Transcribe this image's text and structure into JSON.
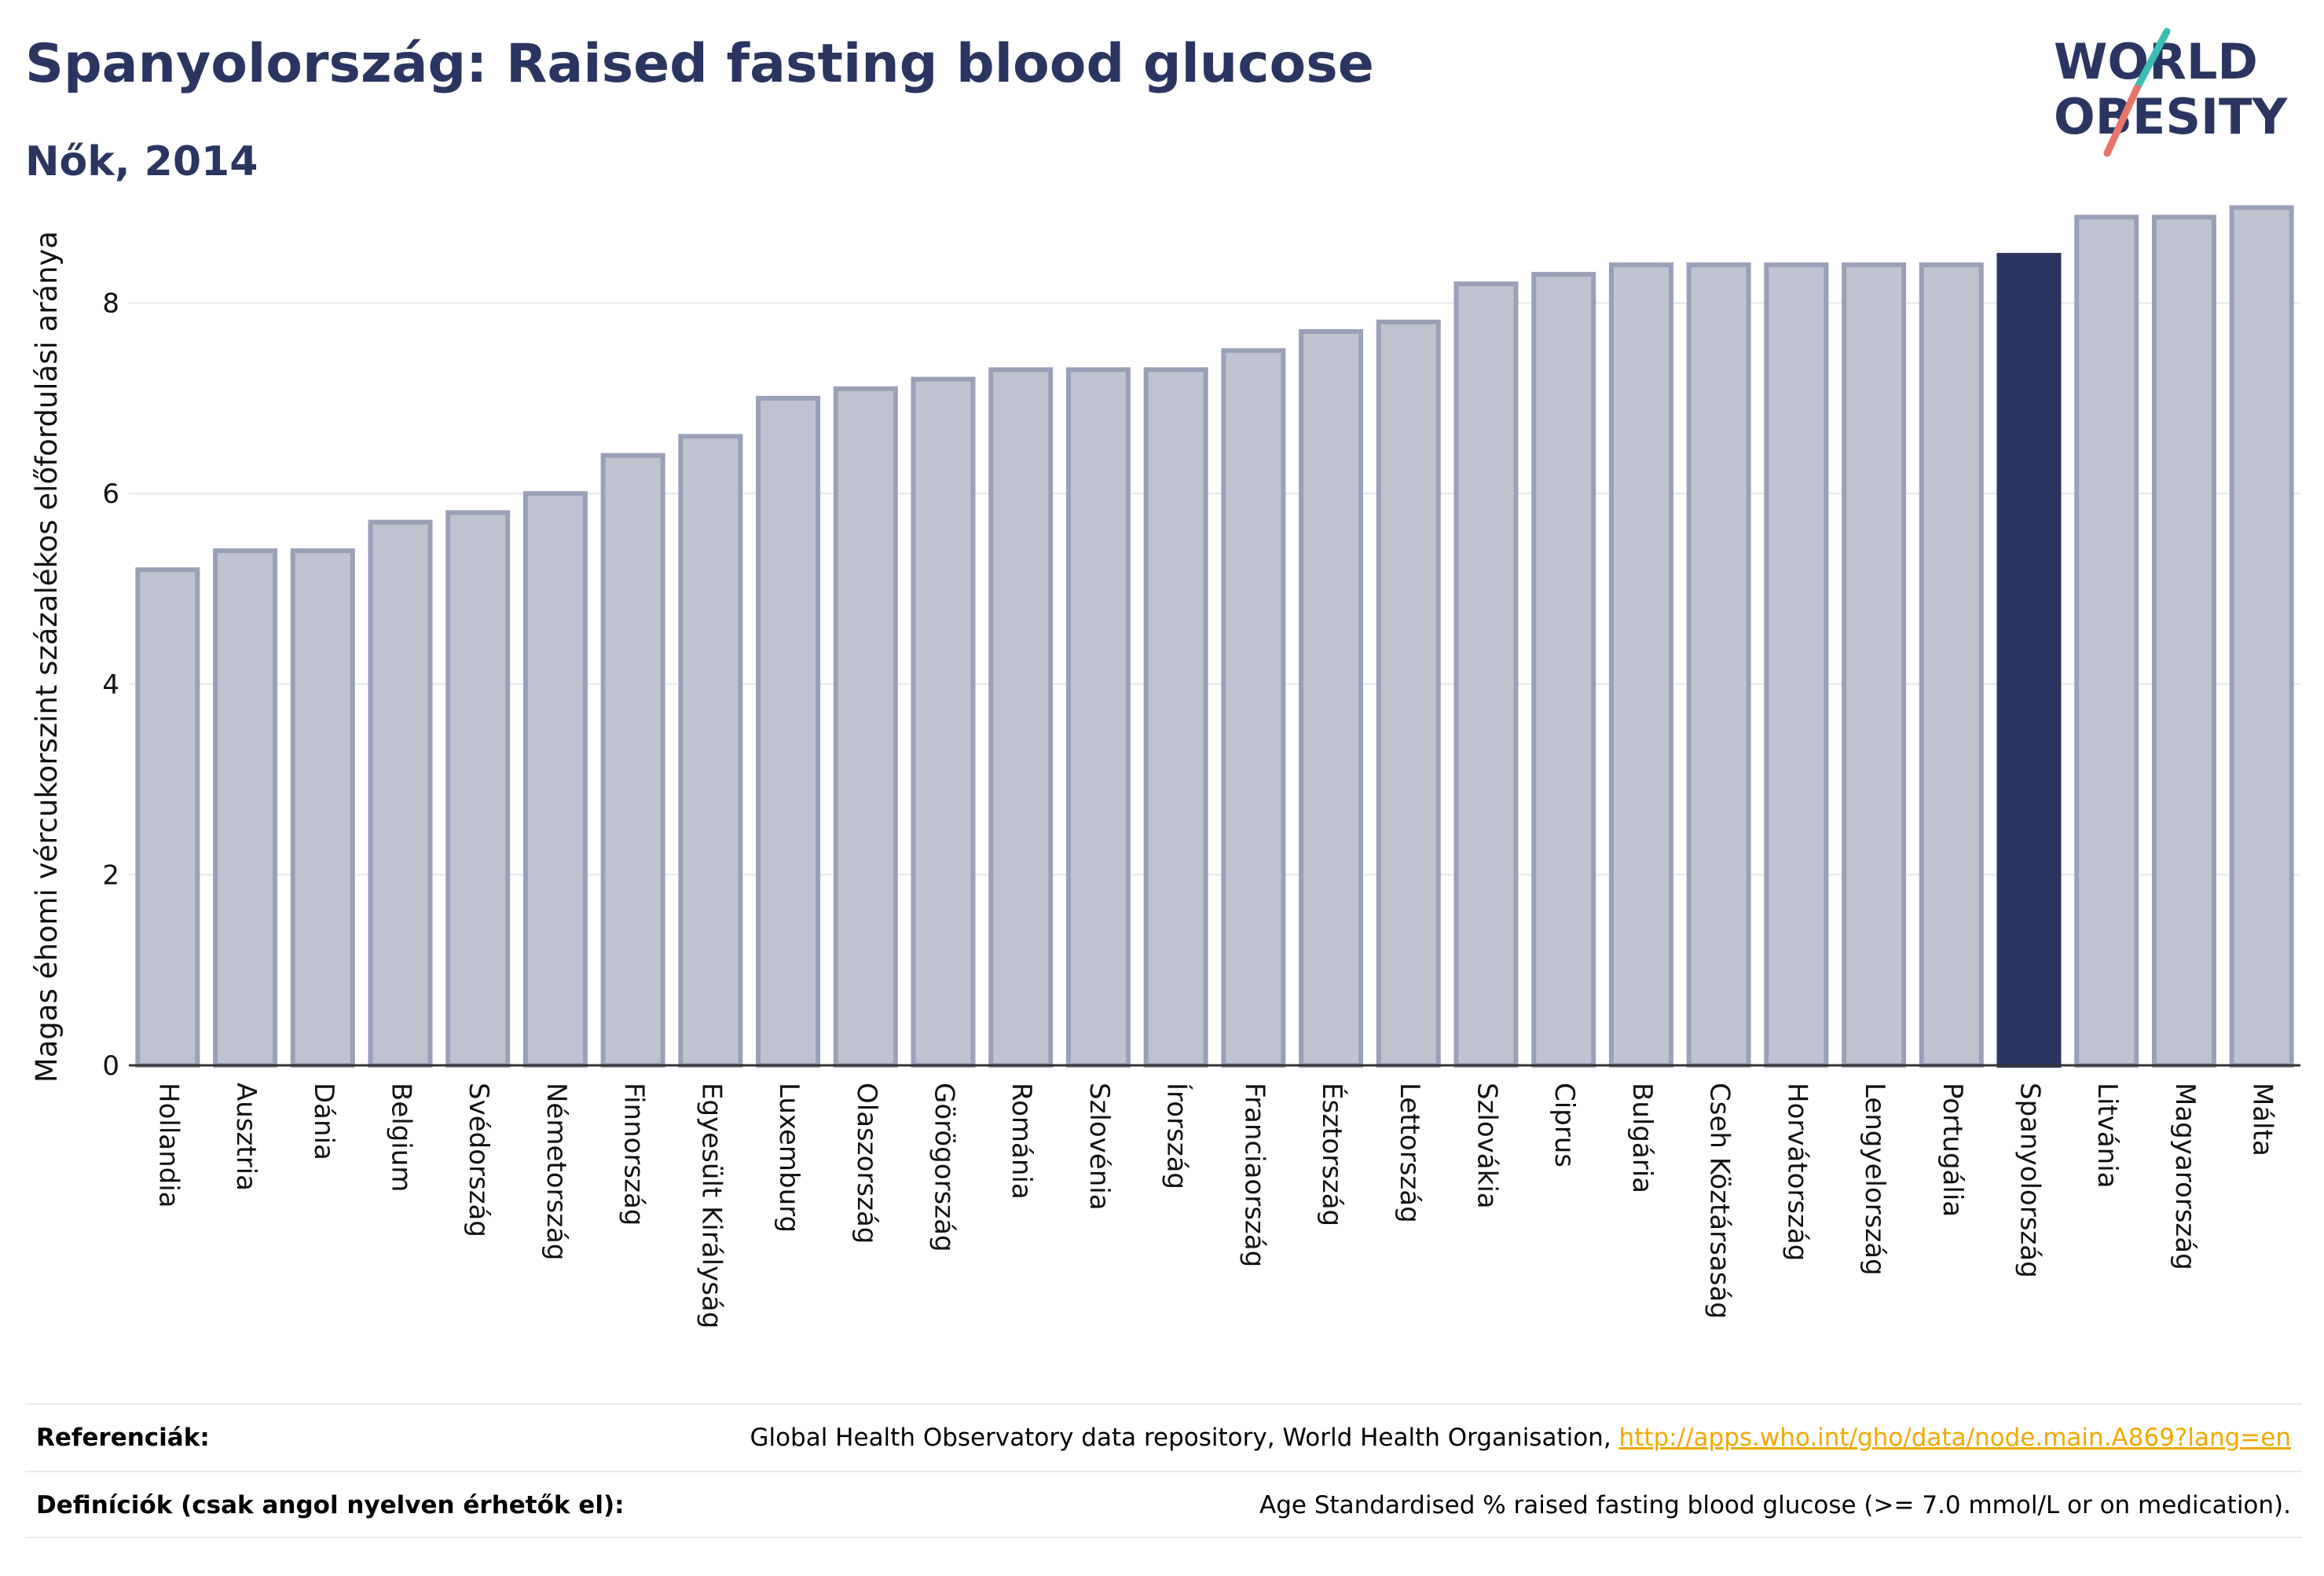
{
  "title": "Spanyolország: Raised fasting blood glucose",
  "subtitle": "Nők, 2014",
  "logo": {
    "line1": "WORLD",
    "line2": "OBESITY"
  },
  "colors": {
    "highlight": "#2a3561",
    "bar_fill": "#bfc3d0",
    "bar_stroke": "#9aa0b8",
    "grid": "#e6e8ee",
    "title": "#2a3561",
    "link": "#f2a900",
    "logo_teal": "#3bbfb3",
    "logo_coral": "#e8756a"
  },
  "chart_data": {
    "type": "bar",
    "title": "",
    "xlabel": "",
    "ylabel": "Magas éhomi vércukorszint százalékos előfordulási aránya",
    "ylim": [
      0,
      9.2
    ],
    "yticks": [
      0,
      2,
      4,
      6,
      8
    ],
    "grid": true,
    "highlight_category": "Spanyolország",
    "categories": [
      "Hollandia",
      "Ausztria",
      "Dánia",
      "Belgium",
      "Svédország",
      "Németország",
      "Finnország",
      "Egyesült Királyság",
      "Luxemburg",
      "Olaszország",
      "Görögország",
      "Románia",
      "Szlovénia",
      "Írország",
      "Franciaország",
      "Észtország",
      "Lettország",
      "Szlovákia",
      "Ciprus",
      "Bulgária",
      "Cseh Köztársaság",
      "Horvátország",
      "Lengyelország",
      "Portugália",
      "Spanyolország",
      "Litvánia",
      "Magyarország",
      "Málta"
    ],
    "values": [
      5.2,
      5.4,
      5.4,
      5.7,
      5.8,
      6.0,
      6.4,
      6.6,
      7.0,
      7.1,
      7.2,
      7.3,
      7.3,
      7.3,
      7.5,
      7.7,
      7.8,
      8.2,
      8.3,
      8.4,
      8.4,
      8.4,
      8.4,
      8.4,
      8.5,
      8.9,
      8.9,
      9.0
    ]
  },
  "references": {
    "label": "Referenciák:",
    "text": "Global Health Observatory data repository, World Health Organisation,",
    "link": "http://apps.who.int/gho/data/node.main.A869?lang=en"
  },
  "definitions": {
    "label": "Definíciók (csak angol nyelven érhetők el):",
    "text": "Age Standardised % raised fasting blood glucose (>= 7.0 mmol/L or on medication)."
  }
}
